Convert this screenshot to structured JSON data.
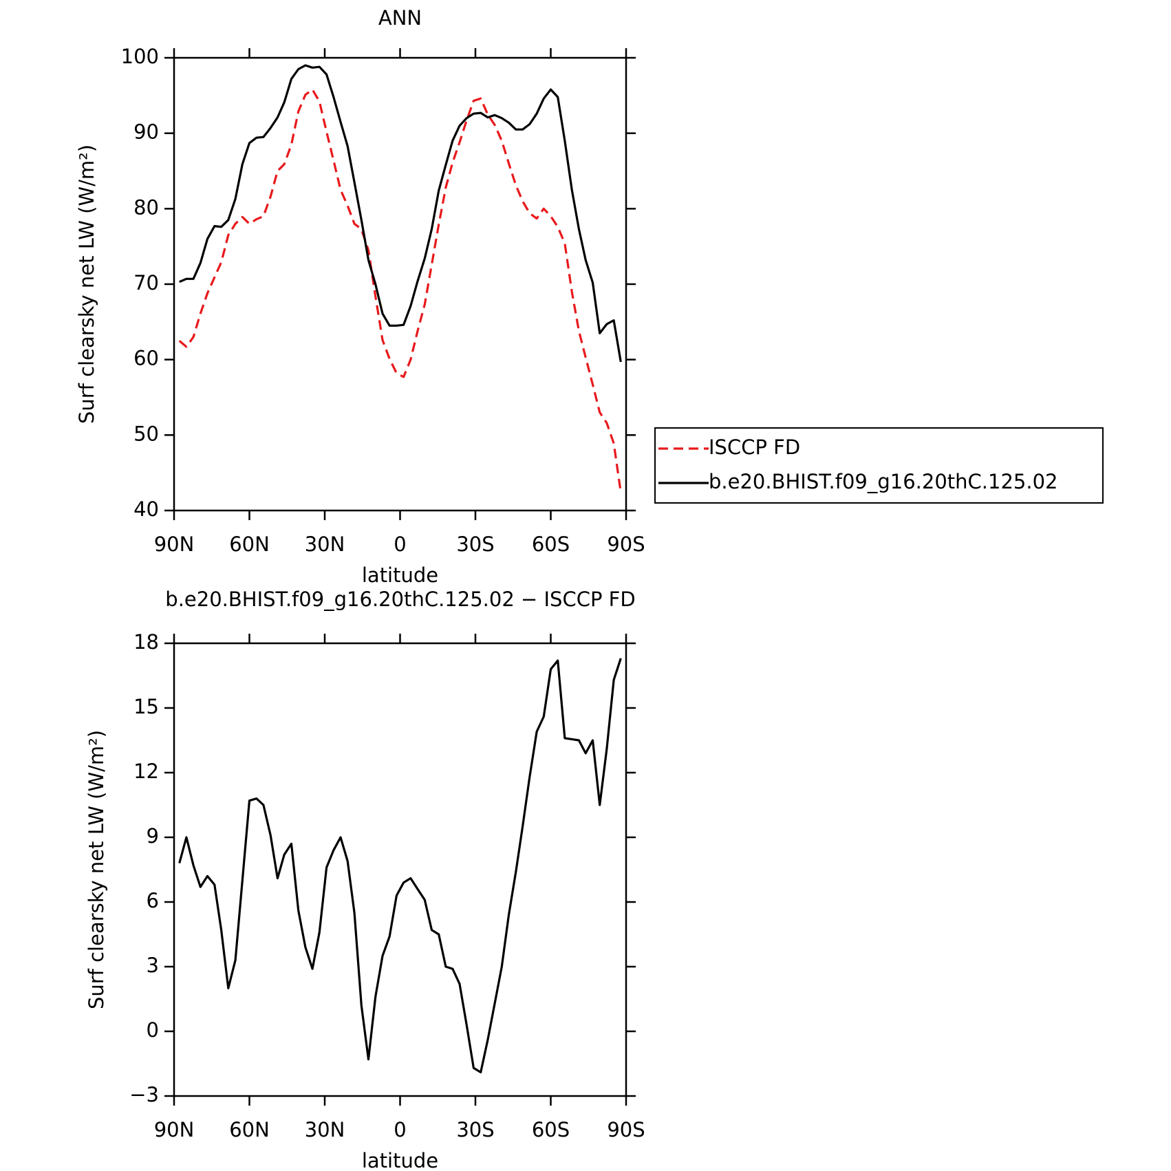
{
  "chart_data": [
    {
      "type": "line",
      "title": "ANN",
      "x_label": "latitude",
      "y_label": "Surf clearsky net LW (W/m²)",
      "x": [
        87.9,
        85.1,
        82.3,
        79.5,
        76.7,
        73.9,
        71.2,
        68.4,
        65.6,
        62.8,
        60.0,
        57.2,
        54.4,
        51.6,
        48.8,
        46.1,
        43.3,
        40.5,
        37.7,
        34.9,
        32.1,
        29.3,
        26.5,
        23.7,
        20.9,
        18.2,
        15.4,
        12.6,
        9.8,
        7.0,
        4.2,
        1.4,
        -1.4,
        -4.2,
        -7.0,
        -9.8,
        -12.6,
        -15.4,
        -18.2,
        -20.9,
        -23.7,
        -26.5,
        -29.3,
        -32.1,
        -34.9,
        -37.7,
        -40.5,
        -43.3,
        -46.1,
        -48.8,
        -51.6,
        -54.4,
        -57.2,
        -60.0,
        -62.8,
        -65.6,
        -68.4,
        -71.2,
        -73.9,
        -76.7,
        -79.5,
        -82.3,
        -85.1,
        -87.9
      ],
      "series": [
        {
          "name": "ISCCP FD",
          "color": "#e8191c",
          "dash": true,
          "values": [
            62.5,
            61.7,
            63.0,
            66.1,
            68.8,
            70.9,
            72.9,
            76.5,
            78.0,
            78.9,
            78.0,
            78.6,
            79.0,
            81.6,
            85.0,
            85.9,
            88.5,
            92.9,
            95.1,
            95.8,
            94.2,
            90.2,
            86.4,
            82.5,
            80.4,
            78.0,
            77.3,
            74.5,
            68.4,
            62.6,
            60.1,
            58.2,
            57.7,
            60.0,
            63.8,
            67.3,
            72.6,
            77.9,
            82.8,
            86.1,
            88.8,
            91.7,
            94.3,
            94.6,
            92.5,
            91.1,
            89.0,
            86.0,
            83.1,
            81.0,
            79.4,
            78.7,
            80.0,
            79.0,
            77.6,
            75.4,
            69.0,
            63.8,
            60.3,
            56.7,
            53.0,
            51.6,
            48.9,
            42.4
          ]
        },
        {
          "name": "b.e20.BHIST.f09_g16.20thC.125.02",
          "color": "#000000",
          "dash": false,
          "values": [
            70.3,
            70.7,
            70.7,
            72.8,
            76.0,
            77.7,
            77.6,
            78.5,
            81.3,
            85.9,
            88.7,
            89.4,
            89.5,
            90.7,
            92.1,
            94.1,
            97.2,
            98.5,
            99.0,
            98.7,
            98.8,
            97.8,
            94.8,
            91.5,
            88.3,
            83.5,
            78.5,
            73.2,
            70.0,
            66.1,
            64.5,
            64.5,
            64.6,
            67.1,
            70.4,
            73.4,
            77.3,
            82.4,
            85.8,
            89.0,
            91.0,
            92.0,
            92.6,
            92.7,
            92.1,
            92.4,
            92.0,
            91.4,
            90.5,
            90.5,
            91.2,
            92.6,
            94.6,
            95.8,
            94.8,
            89.0,
            82.5,
            77.3,
            73.2,
            70.2,
            63.5,
            64.7,
            65.2,
            59.7
          ]
        }
      ],
      "xlim": [
        90,
        -90
      ],
      "xticks": [
        {
          "value": 90,
          "label": "90N"
        },
        {
          "value": 60,
          "label": "60N"
        },
        {
          "value": 30,
          "label": "30N"
        },
        0,
        {
          "value": -30,
          "label": "30S"
        },
        {
          "value": -60,
          "label": "60S"
        },
        {
          "value": -90,
          "label": "90S"
        }
      ],
      "ylim": [
        40,
        100
      ],
      "yticks": [
        40,
        50,
        60,
        70,
        80,
        90,
        100
      ],
      "legend": "right"
    },
    {
      "type": "line",
      "title": "b.e20.BHIST.f09_g16.20thC.125.02 − ISCCP FD",
      "x_label": "latitude",
      "y_label": "Surf clearsky net LW (W/m²)",
      "x": [
        87.9,
        85.1,
        82.3,
        79.5,
        76.7,
        73.9,
        71.2,
        68.4,
        65.6,
        62.8,
        60.0,
        57.2,
        54.4,
        51.6,
        48.8,
        46.1,
        43.3,
        40.5,
        37.7,
        34.9,
        32.1,
        29.3,
        26.5,
        23.7,
        20.9,
        18.2,
        15.4,
        12.6,
        9.8,
        7.0,
        4.2,
        1.4,
        -1.4,
        -4.2,
        -7.0,
        -9.8,
        -12.6,
        -15.4,
        -18.2,
        -20.9,
        -23.7,
        -26.5,
        -29.3,
        -32.1,
        -34.9,
        -37.7,
        -40.5,
        -43.3,
        -46.1,
        -48.8,
        -51.6,
        -54.4,
        -57.2,
        -60.0,
        -62.8,
        -65.6,
        -68.4,
        -71.2,
        -73.9,
        -76.7,
        -79.5,
        -82.3,
        -85.1,
        -87.9
      ],
      "color": "#000000",
      "values": [
        7.8,
        9.0,
        7.7,
        6.7,
        7.2,
        6.8,
        4.7,
        2.0,
        3.3,
        7.0,
        10.7,
        10.8,
        10.5,
        9.1,
        7.1,
        8.2,
        8.7,
        5.6,
        3.9,
        2.9,
        4.6,
        7.6,
        8.4,
        9.0,
        7.9,
        5.5,
        1.2,
        -1.3,
        1.6,
        3.5,
        4.4,
        6.3,
        6.9,
        7.1,
        6.6,
        6.1,
        4.7,
        4.5,
        3.0,
        2.9,
        2.2,
        0.3,
        -1.7,
        -1.9,
        -0.4,
        1.3,
        3.0,
        5.4,
        7.4,
        9.5,
        11.8,
        13.9,
        14.6,
        16.8,
        17.2,
        13.6,
        13.55,
        13.5,
        12.9,
        13.5,
        10.5,
        13.1,
        16.3,
        17.3
      ],
      "xlim": [
        90,
        -90
      ],
      "xticks": [
        {
          "value": 90,
          "label": "90N"
        },
        {
          "value": 60,
          "label": "60N"
        },
        {
          "value": 30,
          "label": "30N"
        },
        0,
        {
          "value": -30,
          "label": "30S"
        },
        {
          "value": -60,
          "label": "60S"
        },
        {
          "value": -90,
          "label": "90S"
        }
      ],
      "ylim": [
        -3,
        18
      ],
      "yticks": [
        {
          "value": -3,
          "label": "−3"
        },
        0,
        3,
        6,
        9,
        12,
        15,
        18
      ]
    }
  ]
}
